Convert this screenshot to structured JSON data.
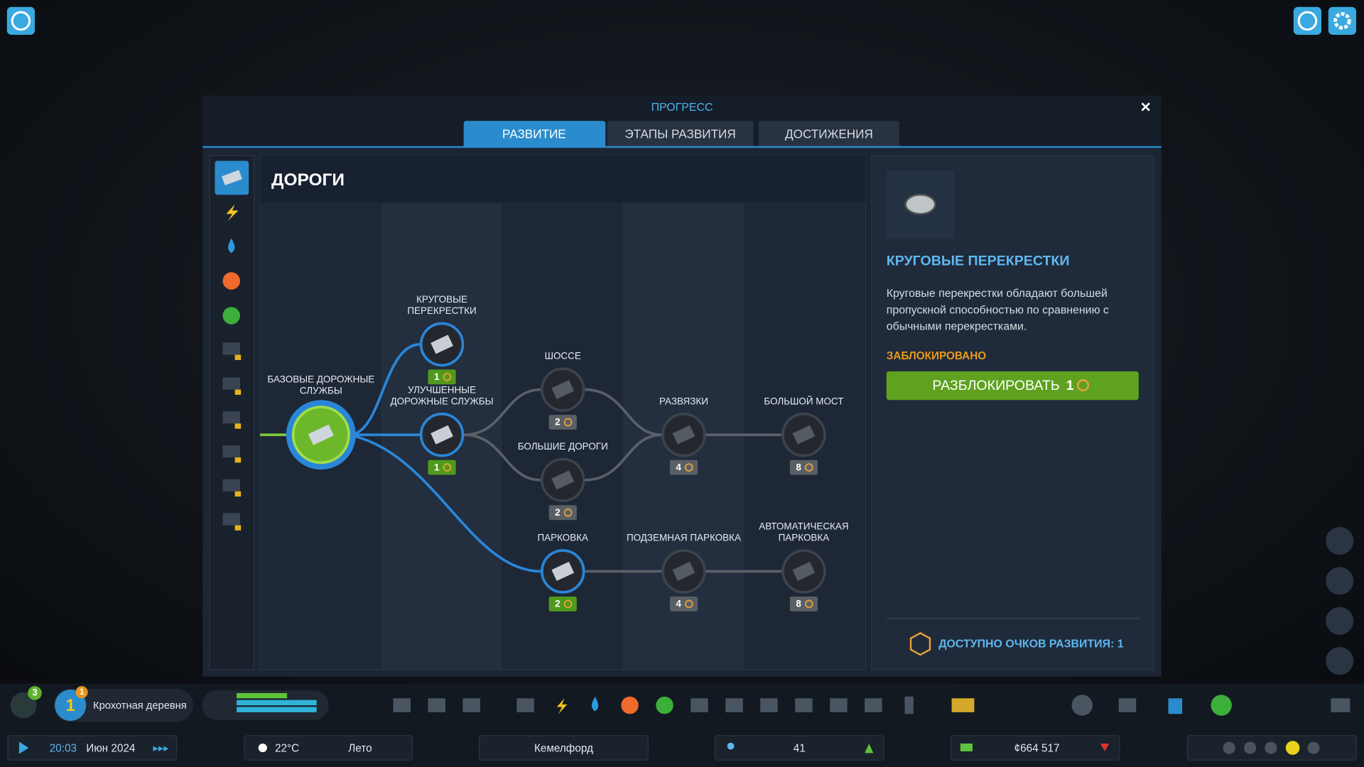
{
  "header": {
    "title": "ПРОГРЕСС",
    "tabs": [
      "РАЗВИТИЕ",
      "ЭТАПЫ РАЗВИТИЯ",
      "ДОСТИЖЕНИЯ"
    ]
  },
  "tree": {
    "title": "ДОРОГИ",
    "nodes": [
      {
        "label": [
          "БАЗОВЫЕ ДОРОЖНЫЕ",
          "СЛУЖБЫ"
        ],
        "cost": null
      },
      {
        "label": [
          "КРУГОВЫЕ",
          "ПЕРЕКРЕСТКИ"
        ],
        "cost": 1,
        "badge_color": "#4f9a1c"
      },
      {
        "label": [
          "УЛУЧШЕННЫЕ",
          "ДОРОЖНЫЕ СЛУЖБЫ"
        ],
        "cost": 1,
        "badge_color": "#4f9a1c"
      },
      {
        "label": [
          "ШОССЕ"
        ],
        "cost": 2,
        "badge_color": "#5a5f66"
      },
      {
        "label": [
          "БОЛЬШИЕ ДОРОГИ"
        ],
        "cost": 2,
        "badge_color": "#5a5f66"
      },
      {
        "label": [
          "РАЗВЯЗКИ"
        ],
        "cost": 4,
        "badge_color": "#5a5f66"
      },
      {
        "label": [
          "БОЛЬШОЙ МОСТ"
        ],
        "cost": 8,
        "badge_color": "#5a5f66"
      },
      {
        "label": [
          "ПАРКОВКА"
        ],
        "cost": 2,
        "badge_color": "#4f9a1c"
      },
      {
        "label": [
          "ПОДЗЕМНАЯ ПАРКОВКА"
        ],
        "cost": 4,
        "badge_color": "#5a5f66"
      },
      {
        "label": [
          "АВТОМАТИЧЕСКАЯ",
          "ПАРКОВКА"
        ],
        "cost": 8,
        "badge_color": "#5a5f66"
      }
    ]
  },
  "detail": {
    "title": "КРУГОВЫЕ ПЕРЕКРЕСТКИ",
    "description": [
      "Круговые перекрестки обладают большей",
      "пропускной способностью по сравнению с",
      "обычными перекрестками."
    ],
    "status": "ЗАБЛОКИРОВАНО",
    "button": "РАЗБЛОКИРОВАТЬ",
    "cost": 1,
    "points": "ДОСТУПНО ОЧКОВ РАЗВИТИЯ: 1"
  },
  "bottom_bar": {
    "notifications": "3",
    "level": "1",
    "level_badge": "1",
    "city_size": "Крохотная деревня",
    "time": "20:03",
    "date": "Июн 2024",
    "temperature": "22°C",
    "season": "Лето",
    "city_name": "Кемелфорд",
    "population": "41",
    "money": "¢664 517"
  }
}
